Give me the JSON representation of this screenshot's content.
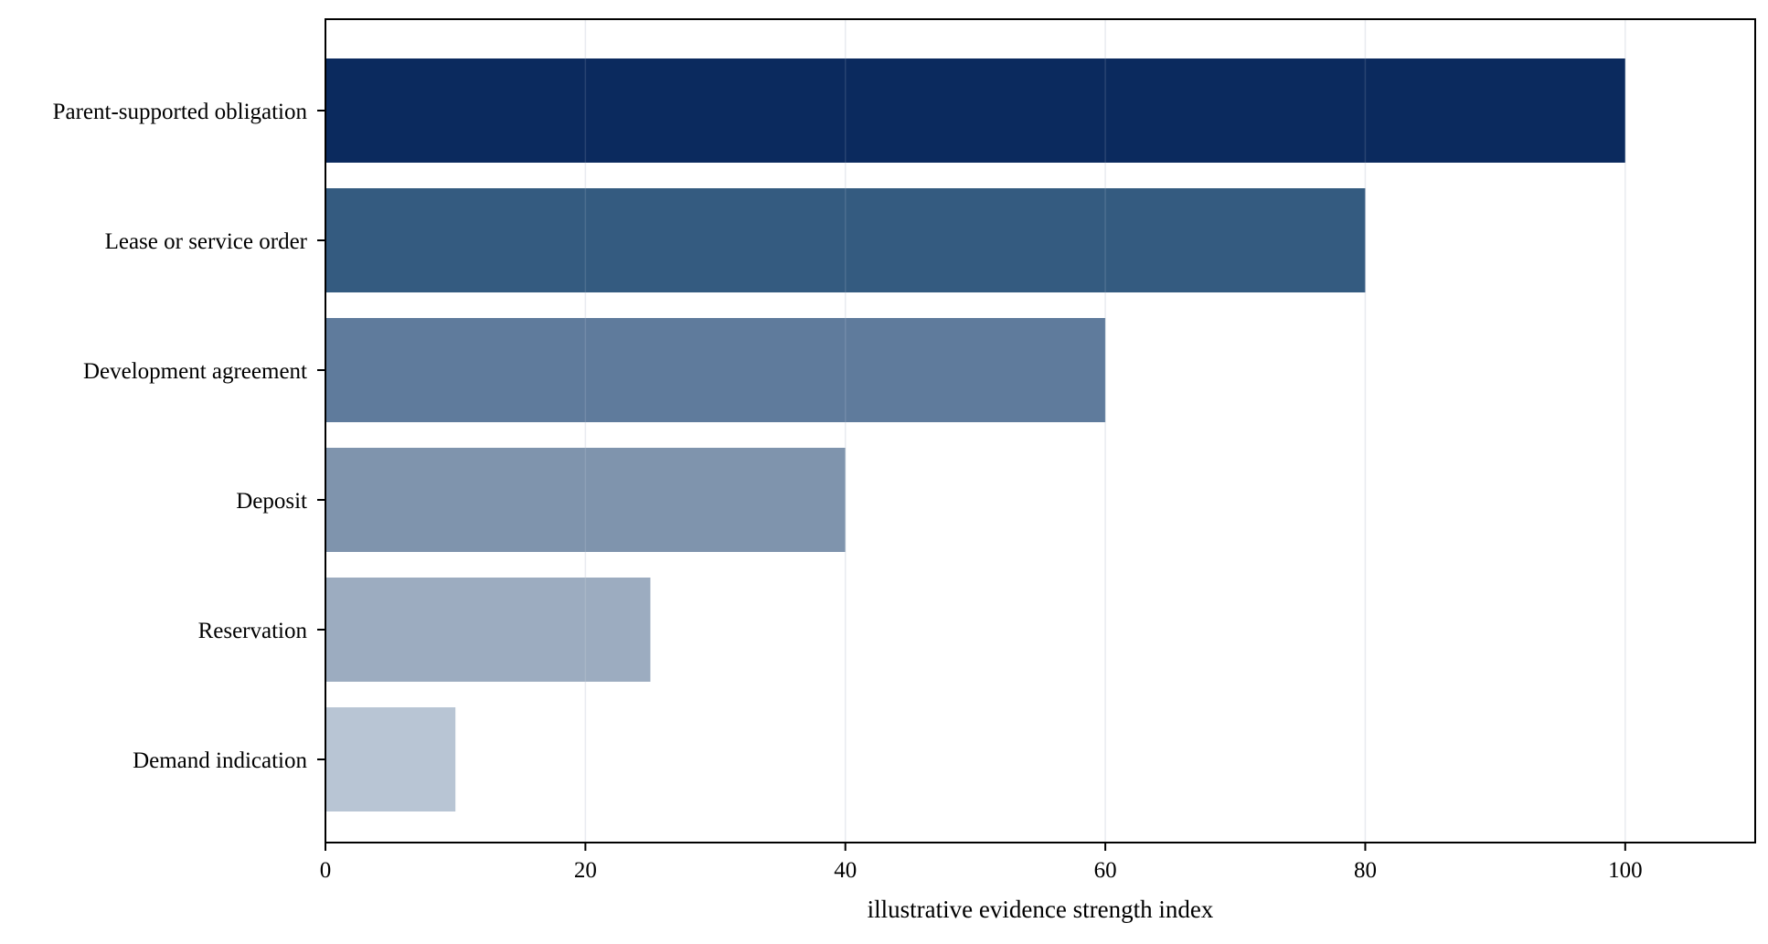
{
  "chart_data": {
    "type": "bar",
    "orientation": "horizontal",
    "title": "",
    "xlabel": "illustrative evidence strength index",
    "ylabel": "",
    "categories": [
      "Parent-supported obligation",
      "Lease or service order",
      "Development agreement",
      "Deposit",
      "Reservation",
      "Demand indication"
    ],
    "values": [
      100,
      80,
      60,
      40,
      25,
      10
    ],
    "colors": [
      "#0b2a5e",
      "#345b80",
      "#5f7b9c",
      "#7f94ad",
      "#9cacc0",
      "#b8c5d4"
    ],
    "xlim": [
      0,
      110
    ],
    "xticks": [
      0,
      20,
      40,
      60,
      80,
      100
    ],
    "grid": "vertical",
    "legend": "none"
  }
}
